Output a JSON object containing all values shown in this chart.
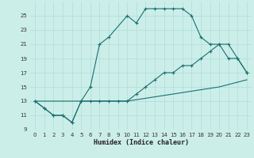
{
  "xlabel": "Humidex (Indice chaleur)",
  "bg_color": "#cceee8",
  "grid_color": "#aadddd",
  "line_color": "#1a7070",
  "xlim": [
    -0.5,
    23.5
  ],
  "ylim": [
    9,
    27
  ],
  "yticks": [
    9,
    11,
    13,
    15,
    17,
    19,
    21,
    23,
    25
  ],
  "xticks": [
    0,
    1,
    2,
    3,
    4,
    5,
    6,
    7,
    8,
    9,
    10,
    11,
    12,
    13,
    14,
    15,
    16,
    17,
    18,
    19,
    20,
    21,
    22,
    23
  ],
  "line1_x": [
    0,
    1,
    2,
    3,
    4,
    5,
    6,
    7,
    8,
    10,
    11,
    12,
    13,
    14,
    15,
    16,
    17,
    18,
    19,
    20,
    21,
    22,
    23
  ],
  "line1_y": [
    13,
    12,
    11,
    11,
    10,
    13,
    15,
    21,
    22,
    25,
    24,
    26,
    26,
    26,
    26,
    26,
    25,
    22,
    21,
    21,
    19,
    19,
    17
  ],
  "line2_x": [
    0,
    1,
    2,
    3,
    4,
    5,
    6,
    7,
    8,
    9,
    10,
    11,
    12,
    13,
    14,
    15,
    16,
    17,
    18,
    19,
    20,
    21,
    22,
    23
  ],
  "line2_y": [
    13,
    12,
    11,
    11,
    10,
    13,
    13,
    13,
    13,
    13,
    13,
    14,
    15,
    16,
    17,
    17,
    18,
    18,
    19,
    20,
    21,
    21,
    19,
    17
  ],
  "line3_x": [
    0,
    5,
    10,
    15,
    20,
    23
  ],
  "line3_y": [
    13,
    13,
    13,
    14,
    15,
    16
  ]
}
